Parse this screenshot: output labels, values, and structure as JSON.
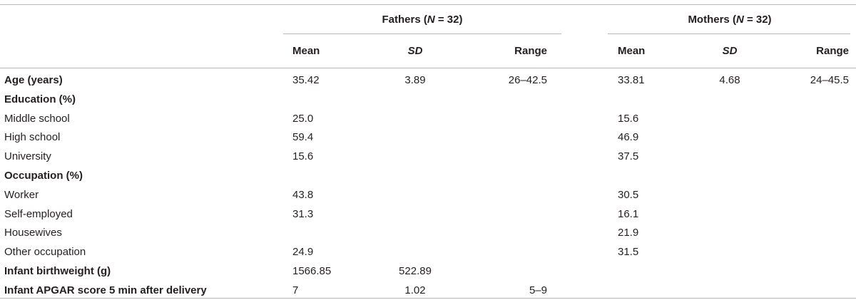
{
  "table": {
    "groups": [
      {
        "label": "Fathers (",
        "n_label": "N",
        "n_suffix": " = 32)"
      },
      {
        "label": "Mothers (",
        "n_label": "N",
        "n_suffix": " = 32)"
      }
    ],
    "subheaders": [
      "Mean",
      "SD",
      "Range",
      "Mean",
      "SD",
      "Range"
    ],
    "rows": [
      {
        "label": "Age (years)",
        "bold": true,
        "f_mean": "35.42",
        "f_sd": "3.89",
        "f_range": "26–42.5",
        "m_mean": "33.81",
        "m_sd": "4.68",
        "m_range": "24–45.5"
      },
      {
        "label": "Education (%)",
        "bold": true,
        "f_mean": "",
        "f_sd": "",
        "f_range": "",
        "m_mean": "",
        "m_sd": "",
        "m_range": ""
      },
      {
        "label": "Middle school",
        "bold": false,
        "f_mean": "25.0",
        "f_sd": "",
        "f_range": "",
        "m_mean": "15.6",
        "m_sd": "",
        "m_range": ""
      },
      {
        "label": "High school",
        "bold": false,
        "f_mean": "59.4",
        "f_sd": "",
        "f_range": "",
        "m_mean": "46.9",
        "m_sd": "",
        "m_range": ""
      },
      {
        "label": "University",
        "bold": false,
        "f_mean": "15.6",
        "f_sd": "",
        "f_range": "",
        "m_mean": "37.5",
        "m_sd": "",
        "m_range": ""
      },
      {
        "label": "Occupation (%)",
        "bold": true,
        "f_mean": "",
        "f_sd": "",
        "f_range": "",
        "m_mean": "",
        "m_sd": "",
        "m_range": ""
      },
      {
        "label": "Worker",
        "bold": false,
        "f_mean": "43.8",
        "f_sd": "",
        "f_range": "",
        "m_mean": "30.5",
        "m_sd": "",
        "m_range": ""
      },
      {
        "label": "Self-employed",
        "bold": false,
        "f_mean": "31.3",
        "f_sd": "",
        "f_range": "",
        "m_mean": "16.1",
        "m_sd": "",
        "m_range": ""
      },
      {
        "label": "Housewives",
        "bold": false,
        "f_mean": "",
        "f_sd": "",
        "f_range": "",
        "m_mean": "21.9",
        "m_sd": "",
        "m_range": ""
      },
      {
        "label": "Other occupation",
        "bold": false,
        "f_mean": "24.9",
        "f_sd": "",
        "f_range": "",
        "m_mean": "31.5",
        "m_sd": "",
        "m_range": ""
      },
      {
        "label": "Infant birthweight (g)",
        "bold": true,
        "f_mean": "1566.85",
        "f_sd": "522.89",
        "f_range": "",
        "m_mean": "",
        "m_sd": "",
        "m_range": ""
      },
      {
        "label": "Infant APGAR score 5 min after delivery",
        "bold": true,
        "f_mean": "7",
        "f_sd": "1.02",
        "f_range": "5–9",
        "m_mean": "",
        "m_sd": "",
        "m_range": ""
      }
    ]
  }
}
